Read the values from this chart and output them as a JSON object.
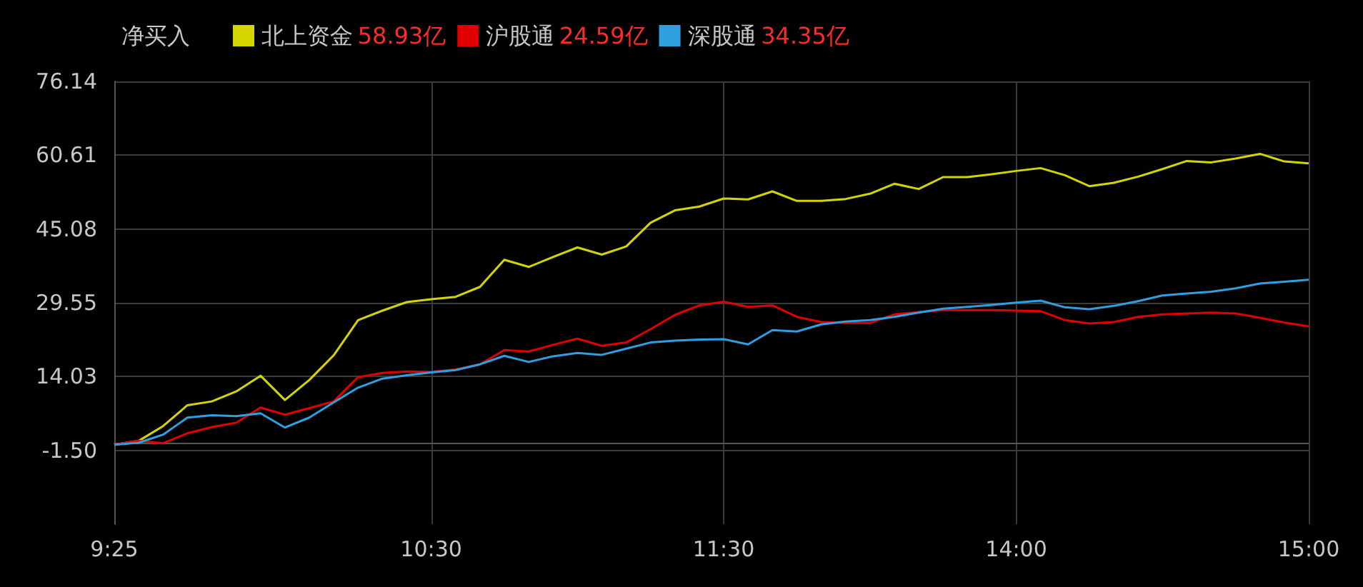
{
  "chart_data": {
    "type": "line",
    "legend_title": "净买入",
    "annotations": [
      "58.93亿",
      "24.59亿",
      "34.35亿"
    ],
    "categories": [
      "9:25",
      null,
      null,
      null,
      null,
      null,
      null,
      null,
      null,
      null,
      null,
      null,
      null,
      "10:30",
      null,
      null,
      null,
      null,
      null,
      null,
      null,
      null,
      null,
      null,
      null,
      "11:30",
      null,
      null,
      null,
      null,
      null,
      null,
      null,
      null,
      null,
      null,
      null,
      "14:00",
      null,
      null,
      null,
      null,
      null,
      null,
      null,
      null,
      null,
      null,
      null,
      "15:00"
    ],
    "ylim": [
      -17.03,
      76.14
    ],
    "yticks": [
      {
        "value": -1.5,
        "label": "-1.50"
      },
      14.03,
      29.55,
      45.08,
      60.61,
      76.14
    ],
    "grid": true,
    "legend": "top left",
    "series": [
      {
        "name": "北上资金",
        "color": "#d4d400",
        "values": [
          -0.3,
          0.5,
          3.6,
          8.0,
          8.8,
          10.9,
          14.2,
          9.1,
          13.3,
          18.5,
          25.9,
          27.9,
          29.7,
          30.3,
          30.8,
          32.9,
          38.6,
          37.1,
          39.2,
          41.2,
          39.7,
          41.4,
          46.4,
          49.0,
          49.8,
          51.5,
          51.3,
          53.0,
          51.0,
          51.0,
          51.4,
          52.5,
          54.6,
          53.5,
          56.0,
          56.0,
          56.6,
          57.3,
          57.9,
          56.4,
          54.1,
          54.8,
          56.1,
          57.7,
          59.4,
          59.1,
          59.9,
          60.9,
          59.3,
          58.9
        ]
      },
      {
        "name": "沪股通",
        "color": "#e00000",
        "values": [
          -0.3,
          0.5,
          0.0,
          2.1,
          3.4,
          4.3,
          7.5,
          6.0,
          7.4,
          8.8,
          13.9,
          14.8,
          15.1,
          15.0,
          15.5,
          16.6,
          19.6,
          19.3,
          20.7,
          22.0,
          20.5,
          21.2,
          24.0,
          27.0,
          29.0,
          29.8,
          28.7,
          29.0,
          26.6,
          25.5,
          25.3,
          25.3,
          27.1,
          27.6,
          28.0,
          28.0,
          28.0,
          27.9,
          27.8,
          25.9,
          25.2,
          25.5,
          26.6,
          27.1,
          27.3,
          27.5,
          27.3,
          26.4,
          25.4,
          24.6
        ]
      },
      {
        "name": "深股通",
        "color": "#2f9fe0",
        "values": [
          -0.3,
          0.1,
          1.8,
          5.4,
          5.9,
          5.7,
          6.3,
          3.3,
          5.4,
          8.6,
          11.7,
          13.6,
          14.3,
          14.9,
          15.4,
          16.6,
          18.4,
          17.1,
          18.3,
          19.0,
          18.6,
          19.9,
          21.2,
          21.6,
          21.8,
          21.9,
          20.8,
          23.8,
          23.5,
          25.0,
          25.6,
          25.9,
          26.6,
          27.5,
          28.3,
          28.7,
          29.1,
          29.6,
          30.0,
          28.6,
          28.2,
          28.9,
          29.9,
          31.1,
          31.5,
          31.9,
          32.6,
          33.6,
          34.0,
          34.4
        ]
      }
    ]
  }
}
